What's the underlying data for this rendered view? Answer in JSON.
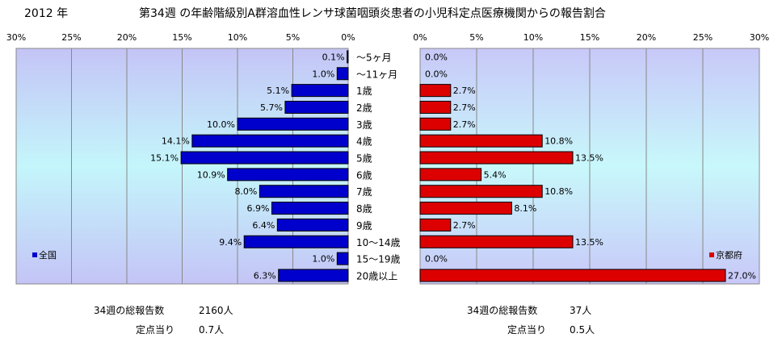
{
  "header": {
    "year": "2012 年",
    "title": "第34週 の年齢階級別A群溶血性レンサ球菌咽頭炎患者の小児科定点医療機関からの報告割合"
  },
  "chart_data": {
    "type": "bar",
    "orientation": "horizontal",
    "categories": [
      "～5ヶ月",
      "～11ヶ月",
      "1歳",
      "2歳",
      "3歳",
      "4歳",
      "5歳",
      "6歳",
      "7歳",
      "8歳",
      "9歳",
      "10～14歳",
      "15～19歳",
      "20歳以上"
    ],
    "xlim": [
      0,
      30
    ],
    "tick_labels": [
      "0%",
      "5%",
      "10%",
      "15%",
      "20%",
      "25%",
      "30%"
    ],
    "grid": true,
    "series": [
      {
        "name": "全国",
        "color": "#0000cc",
        "panel": "left",
        "legend_position": "bottom-left",
        "values": [
          0.1,
          1.0,
          5.1,
          5.7,
          10.0,
          14.1,
          15.1,
          10.9,
          8.0,
          6.9,
          6.4,
          9.4,
          1.0,
          6.3
        ],
        "labels": [
          "0.1%",
          "1.0%",
          "5.1%",
          "5.7%",
          "10.0%",
          "14.1%",
          "15.1%",
          "10.9%",
          "8.0%",
          "6.9%",
          "6.4%",
          "9.4%",
          "1.0%",
          "6.3%"
        ]
      },
      {
        "name": "京都府",
        "color": "#dd0000",
        "panel": "right",
        "legend_position": "bottom-right",
        "values": [
          0.0,
          0.0,
          2.7,
          2.7,
          2.7,
          10.8,
          13.5,
          5.4,
          10.8,
          8.1,
          2.7,
          13.5,
          0.0,
          27.0
        ],
        "labels": [
          "0.0%",
          "0.0%",
          "2.7%",
          "2.7%",
          "2.7%",
          "10.8%",
          "13.5%",
          "5.4%",
          "10.8%",
          "8.1%",
          "2.7%",
          "13.5%",
          "0.0%",
          "27.0%"
        ]
      }
    ]
  },
  "stats": {
    "left": {
      "total_label": "34週の総報告数",
      "total_value": "2160人",
      "per_label": "定点当り",
      "per_value": "0.7人"
    },
    "right": {
      "total_label": "34週の総報告数",
      "total_value": "37人",
      "per_label": "定点当り",
      "per_value": "0.5人"
    }
  }
}
